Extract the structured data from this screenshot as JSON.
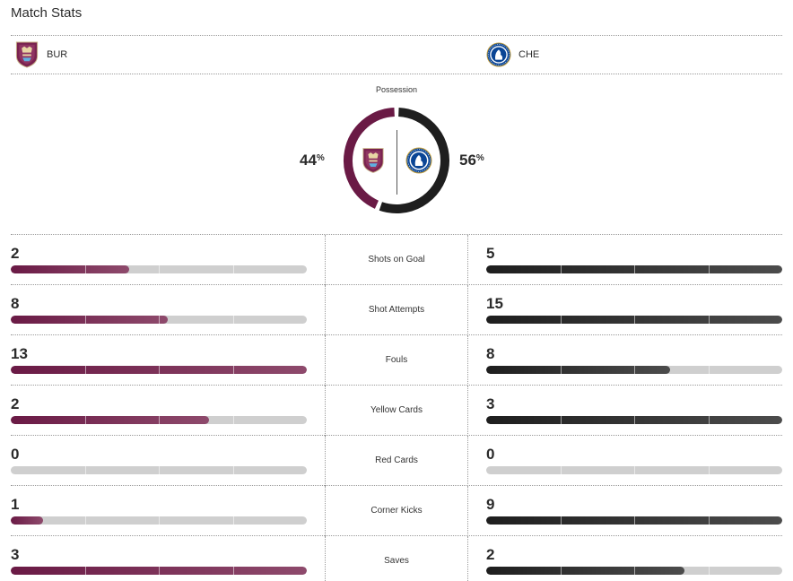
{
  "title": "Match Stats",
  "colors": {
    "home": "#6a1a45",
    "away": "#1e1e1e",
    "track": "#cfcfcf"
  },
  "teams": {
    "home": {
      "abbr": "BUR",
      "crest": "burnley-crest-icon"
    },
    "away": {
      "abbr": "CHE",
      "crest": "chelsea-crest-icon"
    }
  },
  "possession": {
    "label": "Possession",
    "home": 44,
    "away": 56,
    "unit": "%"
  },
  "stats": [
    {
      "label": "Shots on Goal",
      "home": 2,
      "away": 5,
      "home_fill": 0.4,
      "away_fill": 1.0
    },
    {
      "label": "Shot Attempts",
      "home": 8,
      "away": 15,
      "home_fill": 0.53,
      "away_fill": 1.0
    },
    {
      "label": "Fouls",
      "home": 13,
      "away": 8,
      "home_fill": 1.0,
      "away_fill": 0.62
    },
    {
      "label": "Yellow Cards",
      "home": 2,
      "away": 3,
      "home_fill": 0.67,
      "away_fill": 1.0
    },
    {
      "label": "Red Cards",
      "home": 0,
      "away": 0,
      "home_fill": 0.0,
      "away_fill": 0.0
    },
    {
      "label": "Corner Kicks",
      "home": 1,
      "away": 9,
      "home_fill": 0.11,
      "away_fill": 1.0
    },
    {
      "label": "Saves",
      "home": 3,
      "away": 2,
      "home_fill": 1.0,
      "away_fill": 0.67
    }
  ]
}
